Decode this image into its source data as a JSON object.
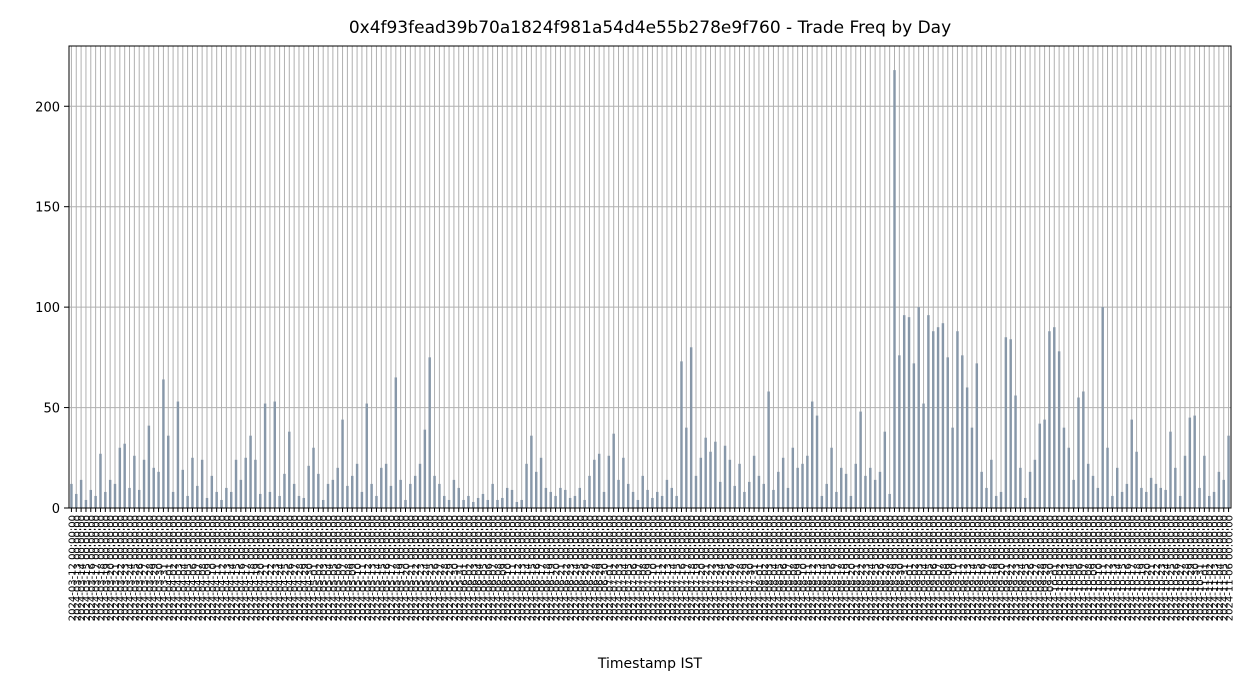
{
  "chart_data": {
    "type": "bar",
    "title": "0x4f93fead39b70a1824f981a54d4e55b278e9f760 - Trade Freq by Day",
    "x_label": "Timestamp IST",
    "color": "#8797a8",
    "grid": true,
    "ylim": [
      0,
      230
    ],
    "yticks": [
      0,
      50,
      100,
      150,
      200
    ],
    "categories": [
      "2024-03-12 00:00:00",
      "2024-03-13 00:00:00",
      "2024-03-14 00:00:00",
      "2024-03-15 00:00:00",
      "2024-03-16 00:00:00",
      "2024-03-17 00:00:00",
      "2024-03-18 00:00:00",
      "2024-03-19 00:00:00",
      "2024-03-20 00:00:00",
      "2024-03-21 00:00:00",
      "2024-03-22 00:00:00",
      "2024-03-23 00:00:00",
      "2024-03-24 00:00:00",
      "2024-03-25 00:00:00",
      "2024-03-26 00:00:00",
      "2024-03-27 00:00:00",
      "2024-03-28 00:00:00",
      "2024-03-29 00:00:00",
      "2024-03-30 00:00:00",
      "2024-03-31 00:00:00",
      "2024-04-01 00:00:00",
      "2024-04-02 00:00:00",
      "2024-04-03 00:00:00",
      "2024-04-04 00:00:00",
      "2024-04-05 00:00:00",
      "2024-04-06 00:00:00",
      "2024-04-07 00:00:00",
      "2024-04-08 00:00:00",
      "2024-04-09 00:00:00",
      "2024-04-10 00:00:00",
      "2024-04-11 00:00:00",
      "2024-04-12 00:00:00",
      "2024-04-13 00:00:00",
      "2024-04-14 00:00:00",
      "2024-04-15 00:00:00",
      "2024-04-16 00:00:00",
      "2024-04-17 00:00:00",
      "2024-04-18 00:00:00",
      "2024-04-19 00:00:00",
      "2024-04-20 00:00:00",
      "2024-04-21 00:00:00",
      "2024-04-22 00:00:00",
      "2024-04-23 00:00:00",
      "2024-04-24 00:00:00",
      "2024-04-25 00:00:00",
      "2024-04-26 00:00:00",
      "2024-04-27 00:00:00",
      "2024-04-28 00:00:00",
      "2024-04-29 00:00:00",
      "2024-04-30 00:00:00",
      "2024-05-01 00:00:00",
      "2024-05-02 00:00:00",
      "2024-05-03 00:00:00",
      "2024-05-04 00:00:00",
      "2024-05-05 00:00:00",
      "2024-05-06 00:00:00",
      "2024-05-07 00:00:00",
      "2024-05-08 00:00:00",
      "2024-05-09 00:00:00",
      "2024-05-10 00:00:00",
      "2024-05-11 00:00:00",
      "2024-05-12 00:00:00",
      "2024-05-13 00:00:00",
      "2024-05-14 00:00:00",
      "2024-05-15 00:00:00",
      "2024-05-16 00:00:00",
      "2024-05-17 00:00:00",
      "2024-05-18 00:00:00",
      "2024-05-19 00:00:00",
      "2024-05-20 00:00:00",
      "2024-05-21 00:00:00",
      "2024-05-22 00:00:00",
      "2024-05-23 00:00:00",
      "2024-05-24 00:00:00",
      "2024-05-25 00:00:00",
      "2024-05-26 00:00:00",
      "2024-05-27 00:00:00",
      "2024-05-28 00:00:00",
      "2024-05-29 00:00:00",
      "2024-05-30 00:00:00",
      "2024-05-31 00:00:00",
      "2024-06-01 00:00:00",
      "2024-06-02 00:00:00",
      "2024-06-03 00:00:00",
      "2024-06-04 00:00:00",
      "2024-06-05 00:00:00",
      "2024-06-06 00:00:00",
      "2024-06-07 00:00:00",
      "2024-06-08 00:00:00",
      "2024-06-09 00:00:00",
      "2024-06-10 00:00:00",
      "2024-06-11 00:00:00",
      "2024-06-12 00:00:00",
      "2024-06-13 00:00:00",
      "2024-06-14 00:00:00",
      "2024-06-15 00:00:00",
      "2024-06-16 00:00:00",
      "2024-06-17 00:00:00",
      "2024-06-18 00:00:00",
      "2024-06-19 00:00:00",
      "2024-06-20 00:00:00",
      "2024-06-21 00:00:00",
      "2024-06-22 00:00:00",
      "2024-06-23 00:00:00",
      "2024-06-24 00:00:00",
      "2024-06-25 00:00:00",
      "2024-06-26 00:00:00",
      "2024-06-27 00:00:00",
      "2024-06-28 00:00:00",
      "2024-06-29 00:00:00",
      "2024-06-30 00:00:00",
      "2024-07-01 00:00:00",
      "2024-07-02 00:00:00",
      "2024-07-03 00:00:00",
      "2024-07-04 00:00:00",
      "2024-07-05 00:00:00",
      "2024-07-06 00:00:00",
      "2024-07-07 00:00:00",
      "2024-07-08 00:00:00",
      "2024-07-09 00:00:00",
      "2024-07-10 00:00:00",
      "2024-07-11 00:00:00",
      "2024-07-12 00:00:00",
      "2024-07-13 00:00:00",
      "2024-07-14 00:00:00",
      "2024-07-15 00:00:00",
      "2024-07-16 00:00:00",
      "2024-07-17 00:00:00",
      "2024-07-18 00:00:00",
      "2024-07-19 00:00:00",
      "2024-07-20 00:00:00",
      "2024-07-21 00:00:00",
      "2024-07-22 00:00:00",
      "2024-07-23 00:00:00",
      "2024-07-24 00:00:00",
      "2024-07-25 00:00:00",
      "2024-07-26 00:00:00",
      "2024-07-27 00:00:00",
      "2024-07-28 00:00:00",
      "2024-07-29 00:00:00",
      "2024-07-30 00:00:00",
      "2024-07-31 00:00:00",
      "2024-08-01 00:00:00",
      "2024-08-02 00:00:00",
      "2024-08-03 00:00:00",
      "2024-08-04 00:00:00",
      "2024-08-05 00:00:00",
      "2024-08-06 00:00:00",
      "2024-08-07 00:00:00",
      "2024-08-08 00:00:00",
      "2024-08-09 00:00:00",
      "2024-08-10 00:00:00",
      "2024-08-11 00:00:00",
      "2024-08-12 00:00:00",
      "2024-08-13 00:00:00",
      "2024-08-14 00:00:00",
      "2024-08-15 00:00:00",
      "2024-08-16 00:00:00",
      "2024-08-17 00:00:00",
      "2024-08-18 00:00:00",
      "2024-08-19 00:00:00",
      "2024-08-20 00:00:00",
      "2024-08-21 00:00:00",
      "2024-08-22 00:00:00",
      "2024-08-23 00:00:00",
      "2024-08-24 00:00:00",
      "2024-08-25 00:00:00",
      "2024-08-26 00:00:00",
      "2024-08-27 00:00:00",
      "2024-08-28 00:00:00",
      "2024-08-29 00:00:00",
      "2024-08-30 00:00:00",
      "2024-08-31 00:00:00",
      "2024-09-01 00:00:00",
      "2024-09-02 00:00:00",
      "2024-09-03 00:00:00",
      "2024-09-04 00:00:00",
      "2024-09-05 00:00:00",
      "2024-09-06 00:00:00",
      "2024-09-07 00:00:00",
      "2024-09-08 00:00:00",
      "2024-09-09 00:00:00",
      "2024-09-10 00:00:00",
      "2024-09-11 00:00:00",
      "2024-09-12 00:00:00",
      "2024-09-13 00:00:00",
      "2024-09-14 00:00:00",
      "2024-09-15 00:00:00",
      "2024-09-16 00:00:00",
      "2024-09-17 00:00:00",
      "2024-09-18 00:00:00",
      "2024-09-19 00:00:00",
      "2024-09-20 00:00:00",
      "2024-09-21 00:00:00",
      "2024-09-22 00:00:00",
      "2024-09-23 00:00:00",
      "2024-09-24 00:00:00",
      "2024-09-25 00:00:00",
      "2024-09-26 00:00:00",
      "2024-09-27 00:00:00",
      "2024-09-28 00:00:00",
      "2024-09-29 00:00:00",
      "2024-09-30 00:00:00",
      "2024-10-01 00:00:00",
      "2024-10-02 00:00:00",
      "2024-10-03 00:00:00",
      "2024-10-04 00:00:00",
      "2024-10-05 00:00:00",
      "2024-10-06 00:00:00",
      "2024-10-07 00:00:00",
      "2024-10-08 00:00:00",
      "2024-10-09 00:00:00",
      "2024-10-10 00:00:00",
      "2024-10-11 00:00:00",
      "2024-10-12 00:00:00",
      "2024-10-13 00:00:00",
      "2024-10-14 00:00:00",
      "2024-10-15 00:00:00",
      "2024-10-16 00:00:00",
      "2024-10-17 00:00:00",
      "2024-10-18 00:00:00",
      "2024-10-19 00:00:00",
      "2024-10-20 00:00:00",
      "2024-10-21 00:00:00",
      "2024-10-22 00:00:00",
      "2024-10-23 00:00:00",
      "2024-10-24 00:00:00",
      "2024-10-25 00:00:00",
      "2024-10-26 00:00:00",
      "2024-10-27 00:00:00",
      "2024-10-28 00:00:00",
      "2024-10-29 00:00:00",
      "2024-10-30 00:00:00",
      "2024-10-31 00:00:00",
      "2024-11-01 00:00:00",
      "2024-11-02 00:00:00",
      "2024-11-03 00:00:00",
      "2024-11-04 00:00:00",
      "2024-11-05 00:00:00",
      "2024-11-06 00:00:00"
    ],
    "values": [
      12,
      7,
      14,
      4,
      9,
      6,
      27,
      8,
      14,
      12,
      30,
      32,
      10,
      26,
      9,
      24,
      41,
      20,
      18,
      64,
      36,
      8,
      53,
      19,
      6,
      25,
      11,
      24,
      5,
      16,
      8,
      4,
      10,
      8,
      24,
      14,
      25,
      36,
      24,
      7,
      52,
      8,
      53,
      6,
      17,
      38,
      12,
      6,
      5,
      21,
      30,
      17,
      4,
      12,
      14,
      20,
      44,
      11,
      16,
      22,
      8,
      52,
      12,
      6,
      20,
      22,
      11,
      65,
      14,
      4,
      12,
      16,
      22,
      39,
      75,
      16,
      12,
      6,
      4,
      14,
      10,
      4,
      6,
      3,
      5,
      7,
      4,
      12,
      4,
      5,
      10,
      9,
      3,
      4,
      22,
      36,
      18,
      25,
      10,
      8,
      6,
      10,
      9,
      5,
      6,
      10,
      4,
      16,
      24,
      27,
      8,
      26,
      37,
      14,
      25,
      12,
      8,
      4,
      16,
      9,
      5,
      8,
      6,
      14,
      10,
      6,
      73,
      40,
      80,
      16,
      25,
      35,
      28,
      33,
      13,
      31,
      24,
      11,
      22,
      8,
      13,
      26,
      16,
      12,
      58,
      9,
      18,
      25,
      10,
      30,
      20,
      22,
      26,
      53,
      46,
      6,
      12,
      30,
      8,
      20,
      17,
      6,
      22,
      48,
      16,
      20,
      14,
      18,
      38,
      7,
      218,
      76,
      96,
      95,
      72,
      100,
      52,
      96,
      88,
      90,
      92,
      75,
      40,
      88,
      76,
      60,
      40,
      72,
      18,
      10,
      24,
      6,
      8,
      85,
      84,
      56,
      20,
      5,
      18,
      24,
      42,
      44,
      88,
      90,
      78,
      40,
      30,
      14,
      55,
      58,
      22,
      16,
      10,
      100,
      30,
      6,
      20,
      8,
      12,
      44,
      28,
      10,
      8,
      15,
      12,
      10,
      9,
      38,
      20,
      6,
      26,
      45,
      46,
      10,
      26,
      6,
      8,
      18,
      14,
      36
    ]
  }
}
